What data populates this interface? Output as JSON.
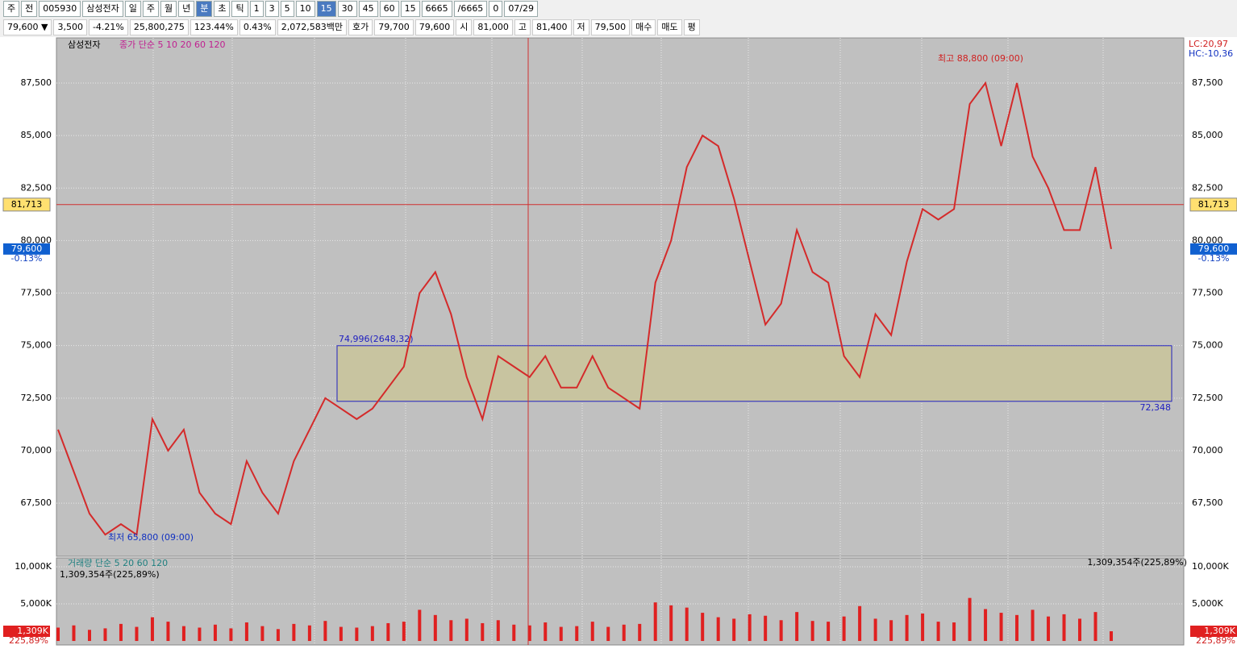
{
  "toolbar": {
    "items": [
      "주",
      "전",
      "005930",
      "삼성전자",
      "일",
      "주",
      "월",
      "년",
      "분",
      "초",
      "틱",
      "1",
      "3",
      "5",
      "10",
      "15",
      "30",
      "45",
      "60",
      "15",
      "6665",
      "/6665",
      "0",
      "07/29"
    ]
  },
  "info": {
    "items": [
      "79,600 ▼",
      "3,500",
      "-4.21%",
      "25,800,275",
      "123.44%",
      "0.43%",
      "2,072,583백만",
      "호가",
      "79,700",
      "79,600",
      "시",
      "81,000",
      "고",
      "81,400",
      "저",
      "79,500",
      "매수",
      "매도",
      "평"
    ]
  },
  "chart_data": {
    "type": "line",
    "title": "삼성전자",
    "legend": "종가 단순 5 10 20 60 120",
    "color": "#d42a2a",
    "values": [
      71000,
      69000,
      67000,
      66000,
      66500,
      66000,
      71500,
      70000,
      71000,
      68000,
      67000,
      66500,
      69500,
      68000,
      67000,
      69500,
      71000,
      72500,
      72000,
      71500,
      72000,
      73000,
      74000,
      77500,
      78500,
      76500,
      73500,
      71500,
      74500,
      74000,
      73500,
      74500,
      73000,
      73000,
      74500,
      73000,
      72500,
      72000,
      78000,
      80000,
      83500,
      85000,
      84500,
      82000,
      79000,
      76000,
      77000,
      80500,
      78500,
      78000,
      74500,
      73500,
      76500,
      75500,
      79000,
      81500,
      81000,
      81500,
      86500,
      87500,
      84500,
      87500,
      84000,
      82500,
      80500,
      80500,
      83500,
      79600
    ],
    "ylim": [
      64970,
      89650
    ],
    "yticks": [
      {
        "value": 67500,
        "label": "67,500"
      },
      {
        "value": 70000,
        "label": "70,000"
      },
      {
        "value": 72500,
        "label": "72,500"
      },
      {
        "value": 75000,
        "label": "75,000"
      },
      {
        "value": 77500,
        "label": "77,500"
      },
      {
        "value": 80000,
        "label": "80,000"
      },
      {
        "value": 82500,
        "label": "82,500"
      },
      {
        "value": 85000,
        "label": "85,000"
      },
      {
        "value": 87500,
        "label": "87,500"
      }
    ],
    "grid": true,
    "box": {
      "top": 74996,
      "bottom": 72348,
      "top_label": "74,996(2648,32)",
      "bottom_label": "72,348"
    },
    "crosshair": {
      "value": 81713,
      "label": "81,713"
    },
    "current": {
      "value": 79600,
      "label": "79,600",
      "change": "-0.13%"
    },
    "high_note": "최고 88,800 (09:00)",
    "low_note": "최저 65,800 (09:00)",
    "lc": "LC:20,97",
    "hc": "HC:-10,36",
    "volume": {
      "legend": "거래량 단순 5 20 60 120",
      "note": "1,309,354주(225,89%)",
      "color": "#e02020",
      "values": [
        1800,
        2100,
        1500,
        1700,
        2300,
        1900,
        3200,
        2600,
        2000,
        1800,
        2200,
        1700,
        2500,
        2000,
        1600,
        2300,
        2100,
        2700,
        1900,
        1800,
        2000,
        2400,
        2600,
        4200,
        3500,
        2800,
        3000,
        2400,
        2800,
        2200,
        2100,
        2500,
        1900,
        2000,
        2600,
        1900,
        2200,
        2300,
        5200,
        4800,
        4500,
        3800,
        3200,
        3000,
        3600,
        3400,
        2800,
        3900,
        2700,
        2600,
        3300,
        4700,
        3000,
        2800,
        3500,
        3700,
        2600,
        2500,
        5800,
        4300,
        3800,
        3500,
        4200,
        3300,
        3600,
        3000,
        3900,
        1309
      ],
      "ylim": [
        -540,
        11200
      ],
      "yticks": [
        {
          "value": 5000,
          "label": "5,000K"
        },
        {
          "value": 10000,
          "label": "10,000K"
        }
      ],
      "current_label": "1,309K",
      "current_pct": "225,89%"
    }
  }
}
